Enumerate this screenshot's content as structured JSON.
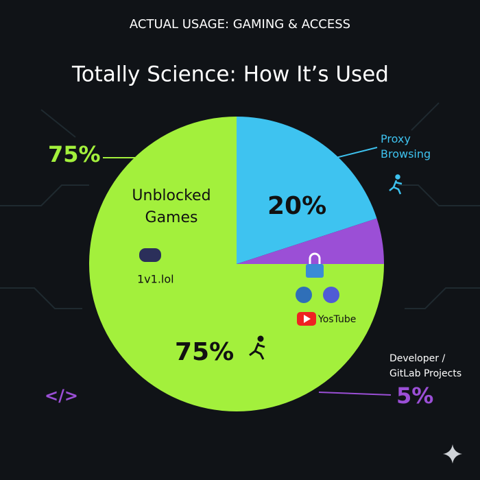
{
  "chart_data": {
    "type": "pie",
    "header": "ACTUAL USAGE: GAMING & ACCESS",
    "title": "Totally Science: How It’s Used",
    "categories": [
      "Proxy Browsing",
      "Developer / GitLab Projects",
      "Unblocked Games"
    ],
    "values": [
      20,
      5,
      75
    ],
    "value_labels": [
      "20%",
      "5%",
      "75%"
    ],
    "colors": [
      "#3ec3f0",
      "#9b4fd6",
      "#a3f03c"
    ],
    "annotations": {
      "game": "1v1.lol",
      "video": "YosTube",
      "code": "</>"
    }
  }
}
